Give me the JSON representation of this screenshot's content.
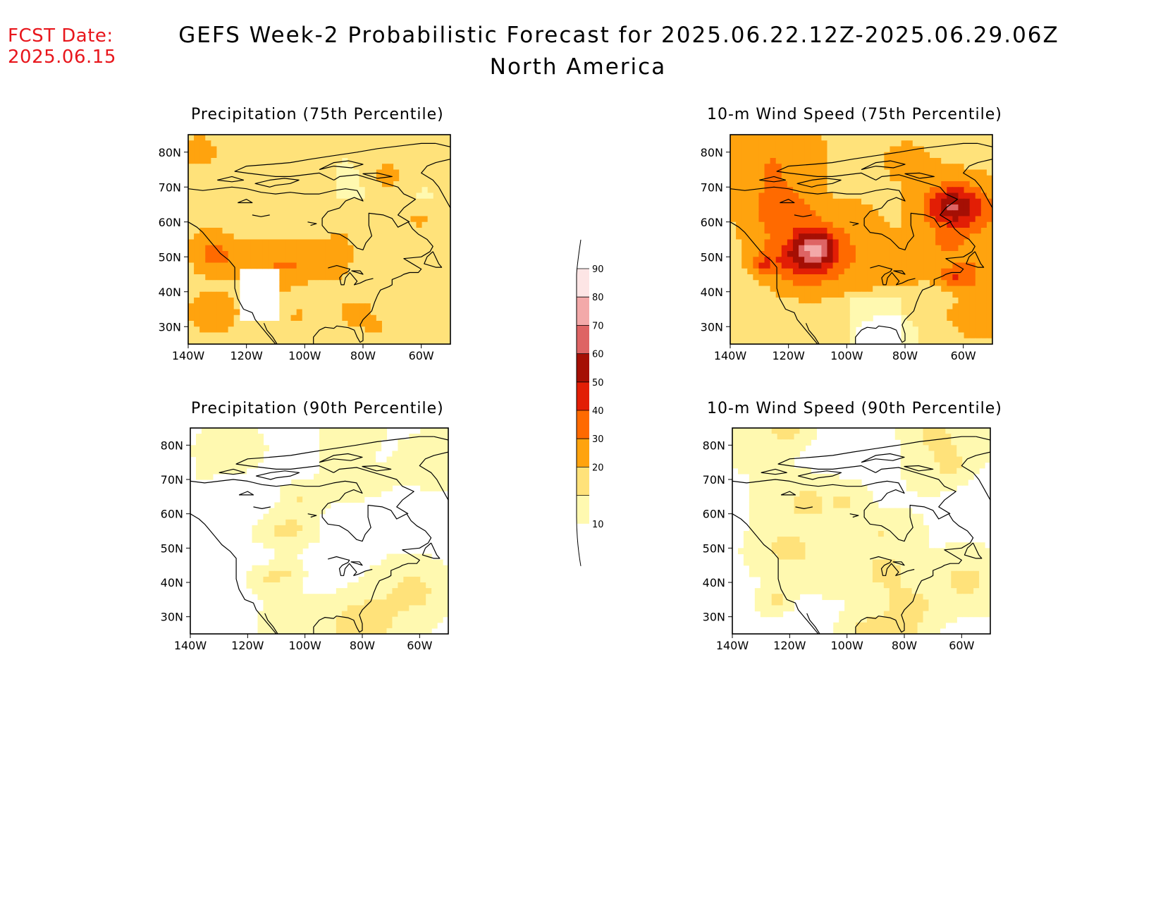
{
  "header": {
    "fcst_label": "FCST Date:",
    "fcst_date": "2025.06.15",
    "title": "GEFS Week-2 Probabilistic Forecast for 2025.06.22.12Z-2025.06.29.06Z",
    "region": "North America"
  },
  "panels": [
    {
      "title": "Precipitation (75th Percentile)",
      "level": "high",
      "seed": 11
    },
    {
      "title": "10-m Wind Speed (75th Percentile)",
      "level": "wind_high",
      "seed": 23
    },
    {
      "title": "Precipitation (90th Percentile)",
      "level": "low",
      "seed": 37
    },
    {
      "title": "10-m Wind Speed (90th Percentile)",
      "level": "wind_low",
      "seed": 51
    }
  ],
  "axes": {
    "lat_labels": [
      "80N",
      "70N",
      "60N",
      "50N",
      "40N",
      "30N"
    ],
    "lat_values": [
      80,
      70,
      60,
      50,
      40,
      30
    ],
    "lon_labels": [
      "140W",
      "120W",
      "100W",
      "80W",
      "60W"
    ],
    "lon_values": [
      -140,
      -120,
      -100,
      -80,
      -60
    ],
    "lat_range": [
      25,
      85
    ],
    "lon_range": [
      -140,
      -50
    ]
  },
  "colorbar": {
    "labels": [
      "10",
      "20",
      "30",
      "40",
      "50",
      "60",
      "70",
      "80",
      "90"
    ],
    "levels": [
      10,
      20,
      30,
      40,
      50,
      60,
      70,
      80,
      90
    ],
    "colors": [
      "#fff9b0",
      "#ffe27a",
      "#ffa30e",
      "#ff6a00",
      "#e21e05",
      "#a50f04",
      "#de6464",
      "#f3a9a9",
      "#fde5e5"
    ]
  }
}
